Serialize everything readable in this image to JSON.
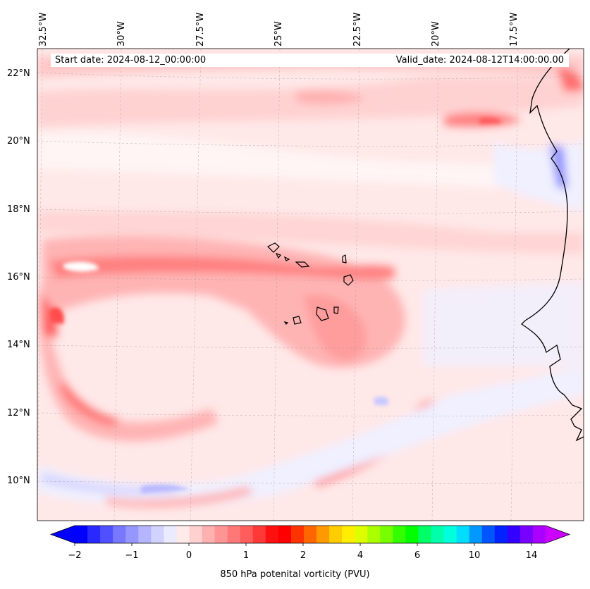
{
  "map": {
    "start_label": "Start date: 2024-08-12_00:00:00",
    "valid_label": "Valid_date: 2024-08-12T14:00:00.00",
    "longitude_labels": [
      "32.5°W",
      "30°W",
      "27.5°W",
      "25°W",
      "22.5°W",
      "20°W",
      "17.5°W"
    ],
    "latitude_labels": [
      "22°N",
      "20°N",
      "18°N",
      "16°N",
      "14°N",
      "12°N",
      "10°N"
    ],
    "extent": {
      "lon_min": -32.6,
      "lon_max": -15.3,
      "lat_min": 8.9,
      "lat_max": 22.8
    },
    "colors": {
      "background_field": "#ffe6e6",
      "coastline": "#000000"
    }
  },
  "colorbar": {
    "title": "850 hPa potenital vorticity (PVU)",
    "tick_labels": [
      "−2",
      "−1",
      "0",
      "1",
      "2",
      "4",
      "6",
      "10",
      "14"
    ],
    "colors": [
      "#0000ff",
      "#2828ff",
      "#5050ff",
      "#7878ff",
      "#9696ff",
      "#b4b4ff",
      "#d2d2ff",
      "#ebebff",
      "#ffeaea",
      "#ffd0d0",
      "#ffb0b0",
      "#ff9494",
      "#ff7878",
      "#ff5c5c",
      "#ff3838",
      "#ff1010",
      "#ff0000",
      "#ff3300",
      "#ff6600",
      "#ff9900",
      "#ffcc00",
      "#ffee00",
      "#ddff00",
      "#aaff00",
      "#77ff00",
      "#33ff00",
      "#00ff00",
      "#00ff66",
      "#00ffaa",
      "#00ffdd",
      "#00ddff",
      "#0099ff",
      "#0055ff",
      "#0022ff",
      "#3300ff",
      "#7700ff",
      "#aa00ff"
    ],
    "extend_left_color": "#0000ff",
    "extend_right_color": "#cc00ff"
  }
}
